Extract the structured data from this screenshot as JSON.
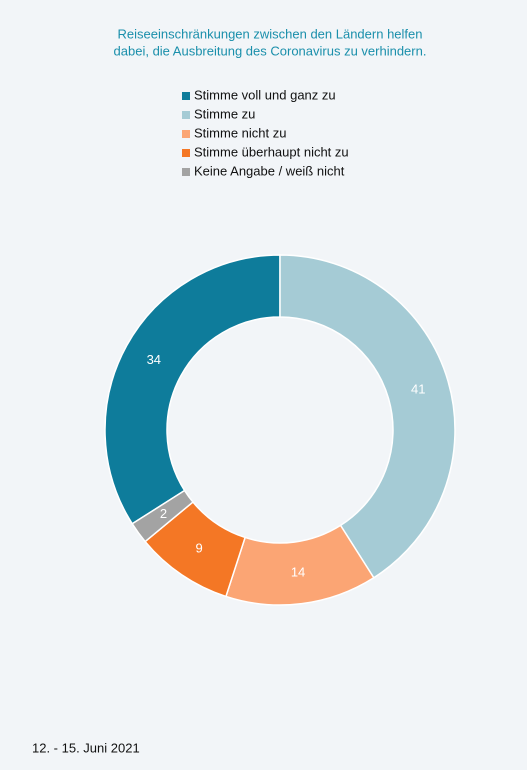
{
  "chart_data": {
    "type": "donut",
    "title": [
      "Reiseeinschränkungen zwischen den Ländern helfen",
      "dabei, die Ausbreitung des Coronavirus zu verhindern."
    ],
    "categories": [
      "Stimme voll und ganz zu",
      "Stimme zu",
      "Stimme nicht zu",
      "Stimme überhaupt nicht zu",
      "Keine Angabe / weiß nicht"
    ],
    "values": [
      34,
      41,
      14,
      9,
      2
    ],
    "colors": [
      "#0e7c9b",
      "#a5cbd5",
      "#fba574",
      "#f47725",
      "#a3a3a3"
    ],
    "legend": "top",
    "footnote": "12. - 15. Juni 2021"
  }
}
